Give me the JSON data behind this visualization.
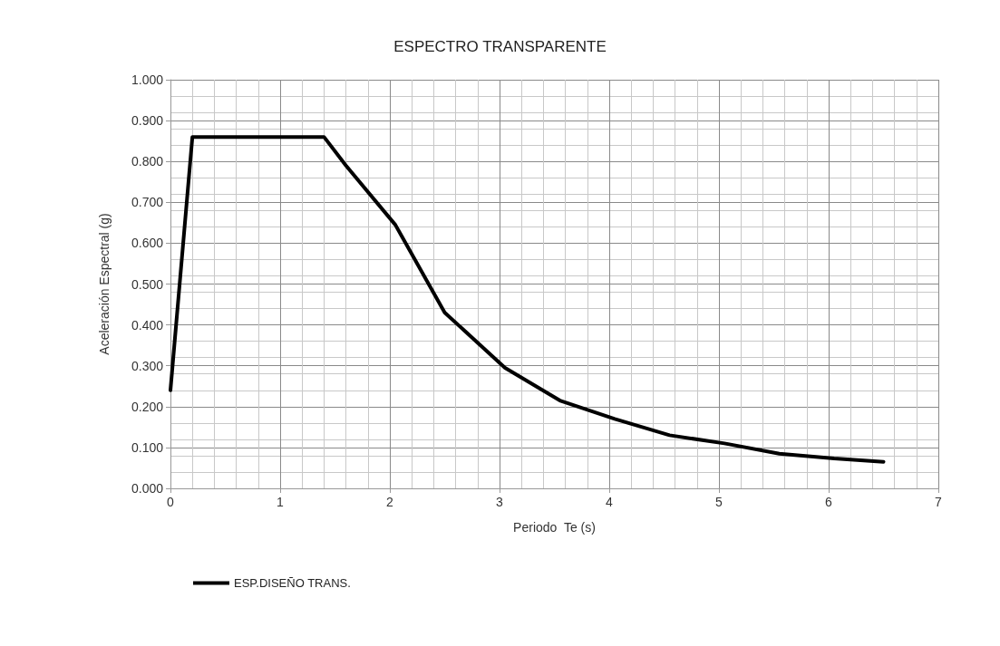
{
  "chart_data": {
    "type": "line",
    "title": "ESPECTRO TRANSPARENTE",
    "xlabel": "Periodo  Te (s)",
    "ylabel": "Aceleración Espectral (g)",
    "series": [
      {
        "name": "ESP.DISEÑO TRANS.",
        "color": "#000000",
        "x": [
          0,
          0.2,
          1.4,
          1.6,
          2.05,
          2.5,
          3.05,
          3.55,
          4.05,
          4.55,
          5.05,
          5.55,
          6.05,
          6.5
        ],
        "values": [
          0.24,
          0.86,
          0.86,
          0.79,
          0.645,
          0.43,
          0.295,
          0.215,
          0.17,
          0.13,
          0.11,
          0.085,
          0.073,
          0.065
        ]
      }
    ],
    "xlim": [
      0,
      7
    ],
    "xticks": [
      0,
      1,
      2,
      3,
      4,
      5,
      6,
      7
    ],
    "ylim": [
      0,
      1
    ],
    "yticks": [
      {
        "value": 0,
        "label": "0.000"
      },
      {
        "value": 0.1,
        "label": "0.100"
      },
      {
        "value": 0.2,
        "label": "0.200"
      },
      {
        "value": 0.3,
        "label": "0.300"
      },
      {
        "value": 0.4,
        "label": "0.400"
      },
      {
        "value": 0.5,
        "label": "0.500"
      },
      {
        "value": 0.6,
        "label": "0.600"
      },
      {
        "value": 0.7,
        "label": "0.700"
      },
      {
        "value": 0.8,
        "label": "0.800"
      },
      {
        "value": 0.9,
        "label": "0.900"
      },
      {
        "value": 1,
        "label": "1.000"
      }
    ],
    "grid": true,
    "legend": "bottom left",
    "marker": "none",
    "line_style": "solid"
  }
}
